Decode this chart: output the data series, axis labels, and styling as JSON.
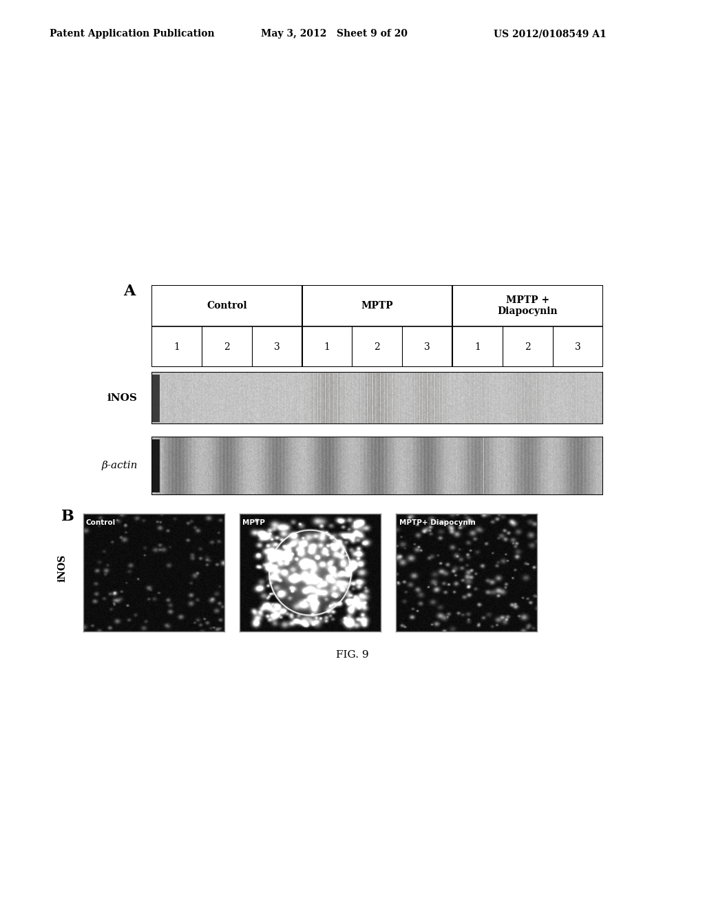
{
  "header_left": "Patent Application Publication",
  "header_mid": "May 3, 2012   Sheet 9 of 20",
  "header_right": "US 2012/0108549 A1",
  "panel_a_label": "A",
  "panel_b_label": "B",
  "fig_caption": "FIG. 9",
  "table_groups": [
    "Control",
    "MPTP",
    "MPTP +\nDiapocynin"
  ],
  "table_numbers": [
    "1",
    "2",
    "3",
    "1",
    "2",
    "3",
    "1",
    "2",
    "3"
  ],
  "inos_label": "iNOS",
  "bactin_label": "β-actin",
  "micro_labels": [
    "Control",
    "MPTP",
    "MPTP+ Diapocynin"
  ],
  "inos_row_label": "iNOS",
  "bg_color": "#ffffff",
  "header_fontsize": 10,
  "label_fontsize": 11,
  "table_fontsize": 10,
  "caption_fontsize": 11
}
